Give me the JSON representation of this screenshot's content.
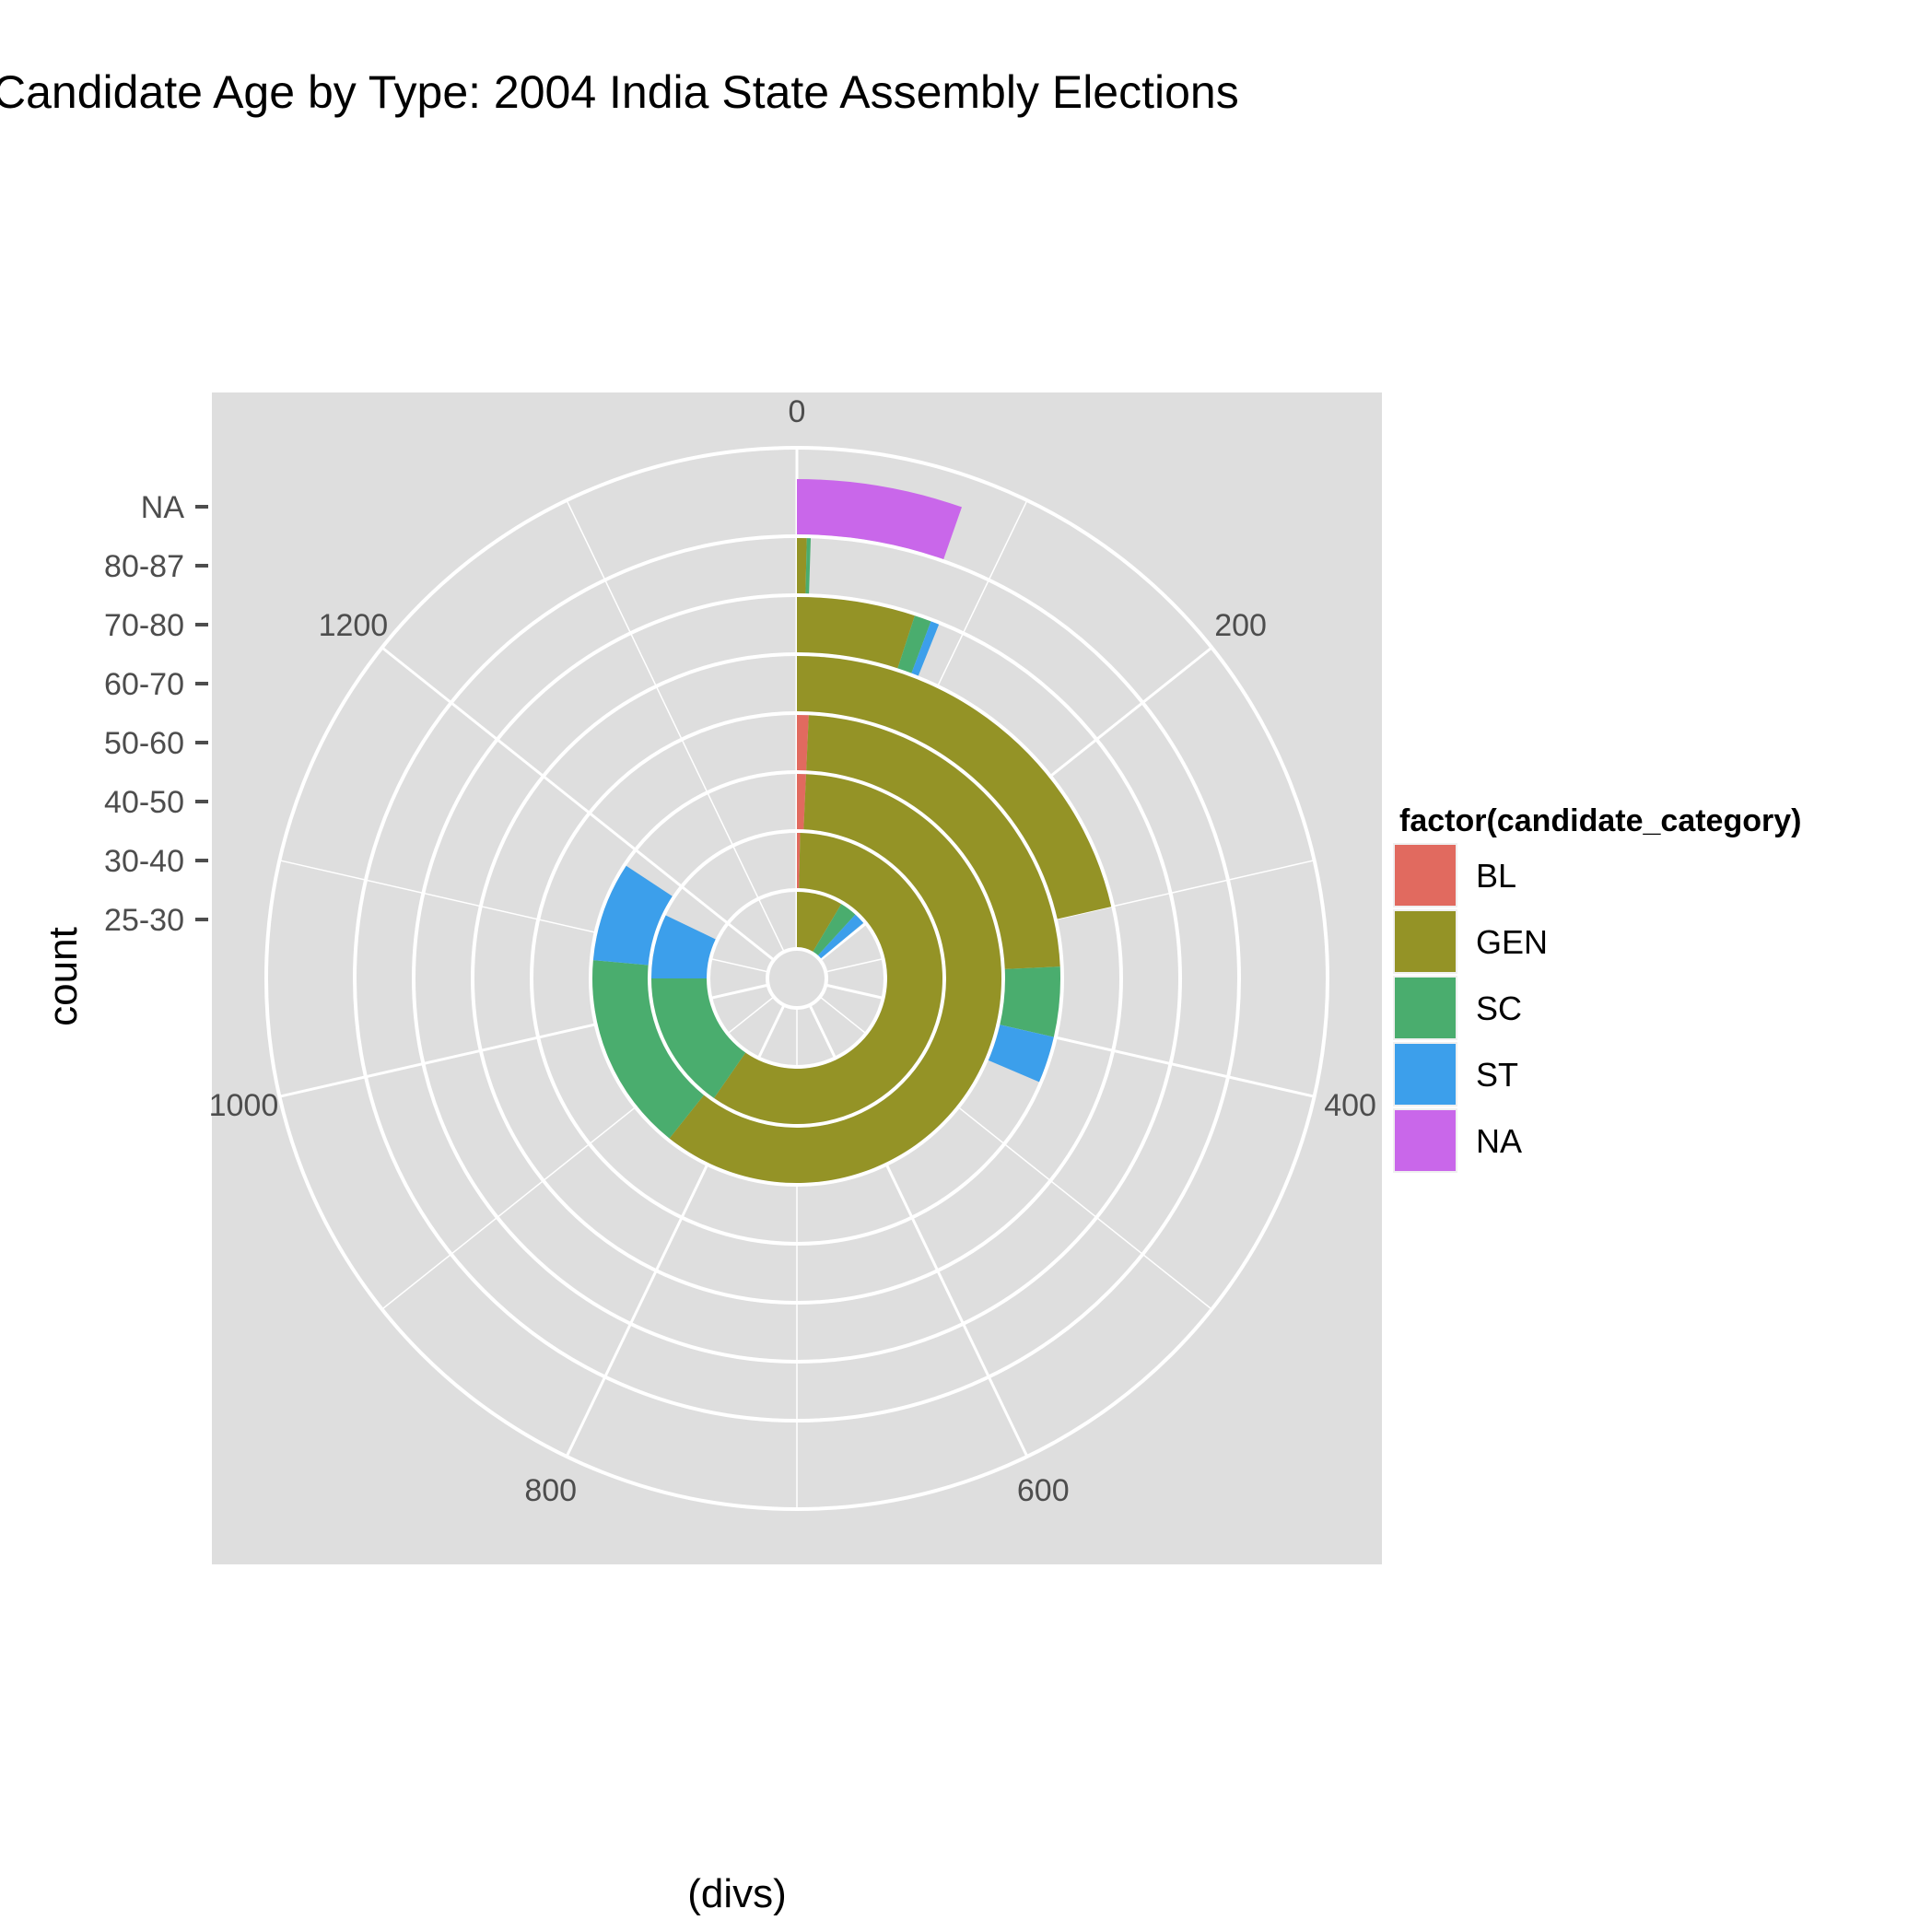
{
  "chart_data": {
    "type": "bar",
    "coord": "polar",
    "title": "Candidate Age by Type: 2004 India State Assembly Elections",
    "xlabel": "(divs)",
    "ylabel": "count",
    "categories": [
      "25-30",
      "30-40",
      "40-50",
      "50-60",
      "60-70",
      "70-80",
      "80-87",
      "NA"
    ],
    "angle_ticks": [
      0,
      200,
      400,
      600,
      800,
      1000,
      1200
    ],
    "angle_max": 1400,
    "series": [
      {
        "name": "BL",
        "color": "#E16A5F",
        "values": [
          0,
          5,
          10,
          10,
          0,
          0,
          0,
          0
        ]
      },
      {
        "name": "GEN",
        "color": "#949326",
        "values": [
          120,
          830,
          840,
          330,
          300,
          70,
          5,
          0
        ]
      },
      {
        "name": "SC",
        "color": "#4AAD6E",
        "values": [
          45,
          215,
          220,
          60,
          0,
          10,
          2,
          0
        ]
      },
      {
        "name": "ST",
        "color": "#3C9FEB",
        "values": [
          30,
          100,
          110,
          40,
          0,
          5,
          0,
          0
        ]
      },
      {
        "name": "NA",
        "color": "#C967EA",
        "values": [
          0,
          0,
          0,
          0,
          0,
          0,
          0,
          75
        ]
      }
    ],
    "legend": {
      "title": "factor(candidate_category)",
      "position": "right",
      "items": [
        "BL",
        "GEN",
        "SC",
        "ST",
        "NA"
      ]
    },
    "grid": true,
    "panel_background": "#DEDEDE"
  }
}
